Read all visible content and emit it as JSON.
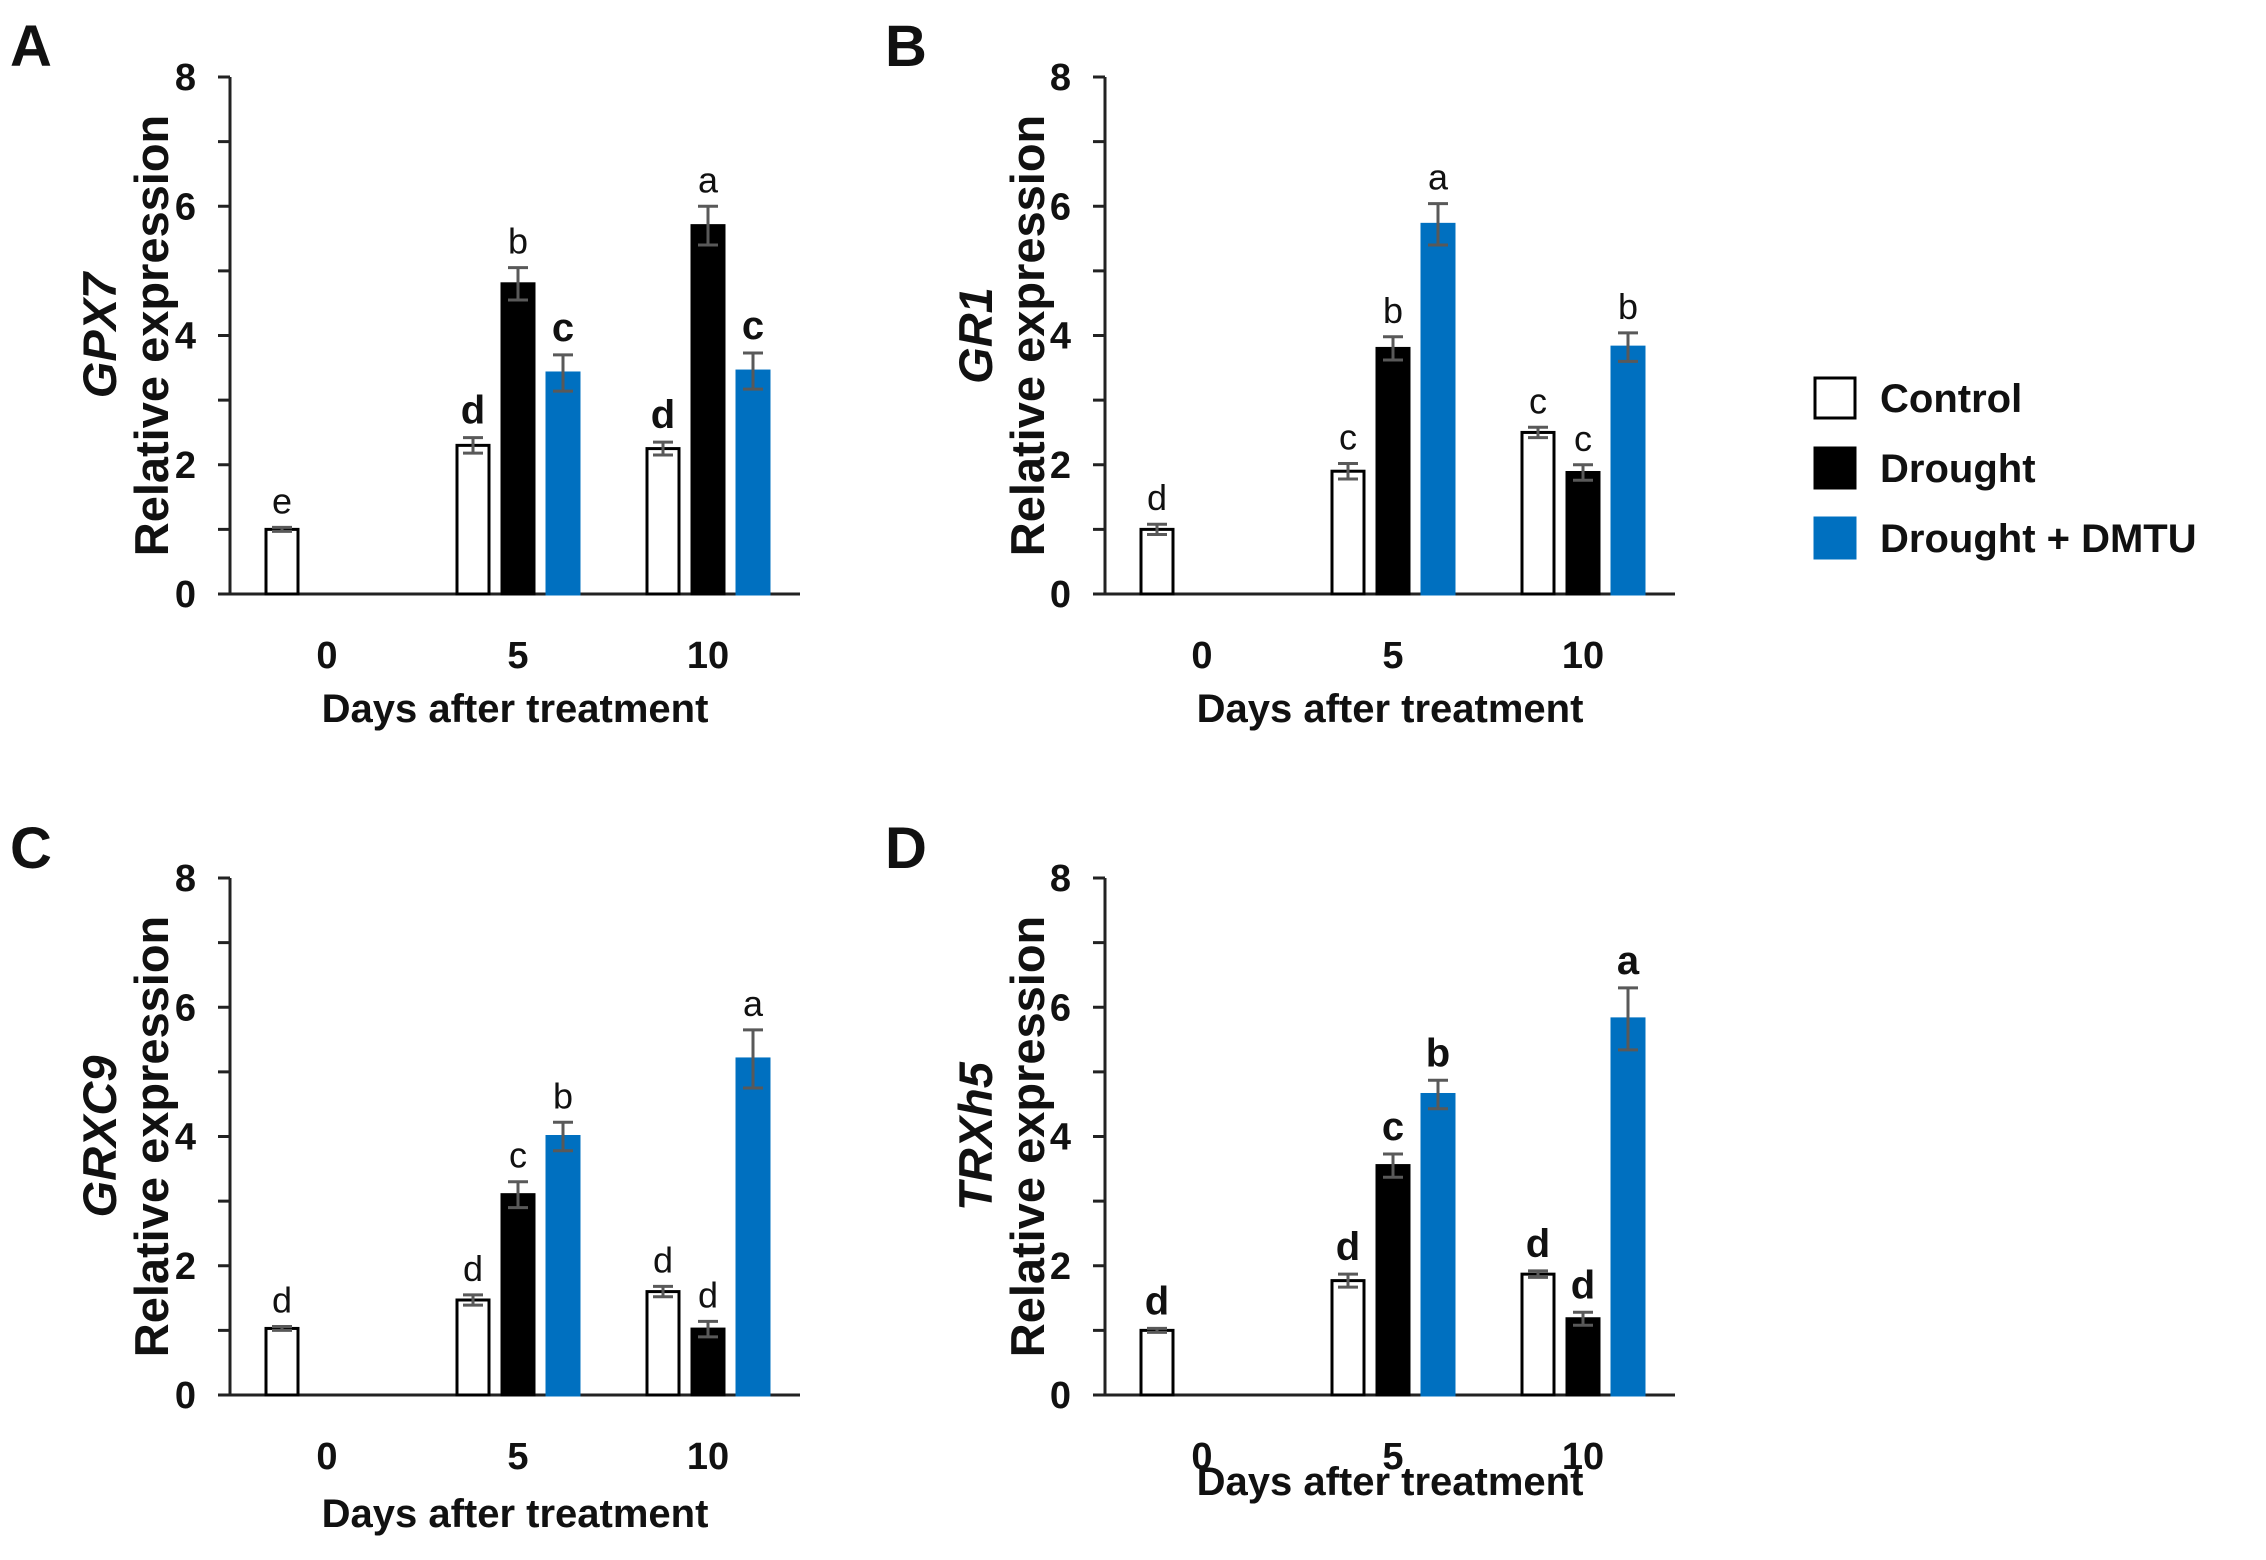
{
  "legend": {
    "entries": [
      {
        "label": "Control",
        "fill": "#ffffff"
      },
      {
        "label": "Drought",
        "fill": "#000000"
      },
      {
        "label": "Drought + DMTU",
        "fill": "#0070c0"
      }
    ]
  },
  "chart_data": [
    {
      "type": "bar",
      "panel_label": "A",
      "gene": "GPX7",
      "ylabel": "Relative expression",
      "xlabel": "Days after treatment",
      "categories": [
        "0",
        "5",
        "10"
      ],
      "ylim": [
        0,
        8
      ],
      "yticks": [
        "0",
        "2",
        "4",
        "6",
        "8"
      ],
      "bold_letters": false,
      "series": [
        {
          "name": "Control",
          "values": [
            1.0,
            2.3,
            2.25
          ],
          "errors": [
            0.03,
            0.12,
            0.1
          ],
          "letters": [
            "e",
            "d",
            "d"
          ],
          "letter_bold": [
            false,
            true,
            true
          ]
        },
        {
          "name": "Drought",
          "values": [
            null,
            4.8,
            5.7
          ],
          "errors": [
            null,
            0.25,
            0.3
          ],
          "letters": [
            "",
            "b",
            "a"
          ],
          "letter_bold": [
            false,
            false,
            false
          ]
        },
        {
          "name": "Drought + DMTU",
          "values": [
            null,
            3.42,
            3.45
          ],
          "errors": [
            null,
            0.28,
            0.28
          ],
          "letters": [
            "",
            "c",
            "c"
          ],
          "letter_bold": [
            false,
            true,
            true
          ]
        }
      ]
    },
    {
      "type": "bar",
      "panel_label": "B",
      "gene": "GR1",
      "ylabel": "Relative expression",
      "xlabel": "Days after treatment",
      "categories": [
        "0",
        "5",
        "10"
      ],
      "ylim": [
        0,
        8
      ],
      "yticks": [
        "0",
        "2",
        "4",
        "6",
        "8"
      ],
      "series": [
        {
          "name": "Control",
          "values": [
            1.0,
            1.9,
            2.5
          ],
          "errors": [
            0.08,
            0.12,
            0.08
          ],
          "letters": [
            "d",
            "c",
            "c"
          ],
          "letter_bold": [
            false,
            false,
            false
          ]
        },
        {
          "name": "Drought",
          "values": [
            null,
            3.8,
            1.88
          ],
          "errors": [
            null,
            0.18,
            0.12
          ],
          "letters": [
            "",
            "b",
            "c"
          ],
          "letter_bold": [
            false,
            false,
            false
          ]
        },
        {
          "name": "Drought + DMTU",
          "values": [
            null,
            5.72,
            3.82
          ],
          "errors": [
            null,
            0.32,
            0.22
          ],
          "letters": [
            "",
            "a",
            "b"
          ],
          "letter_bold": [
            false,
            false,
            false
          ]
        }
      ]
    },
    {
      "type": "bar",
      "panel_label": "C",
      "gene": "GRXC9",
      "ylabel": "Relative expression",
      "xlabel": "Days after treatment",
      "categories": [
        "0",
        "5",
        "10"
      ],
      "ylim": [
        0,
        8
      ],
      "yticks": [
        "0",
        "2",
        "4",
        "6",
        "8"
      ],
      "series": [
        {
          "name": "Control",
          "values": [
            1.03,
            1.47,
            1.6
          ],
          "errors": [
            0.03,
            0.08,
            0.08
          ],
          "letters": [
            "d",
            "d",
            "d"
          ],
          "letter_bold": [
            false,
            false,
            false
          ]
        },
        {
          "name": "Drought",
          "values": [
            null,
            3.1,
            1.02
          ],
          "errors": [
            null,
            0.2,
            0.12
          ],
          "letters": [
            "",
            "c",
            "d"
          ],
          "letter_bold": [
            false,
            false,
            false
          ]
        },
        {
          "name": "Drought + DMTU",
          "values": [
            null,
            4.0,
            5.2
          ],
          "errors": [
            null,
            0.22,
            0.45
          ],
          "letters": [
            "",
            "b",
            "a"
          ],
          "letter_bold": [
            false,
            false,
            false
          ]
        }
      ]
    },
    {
      "type": "bar",
      "panel_label": "D",
      "gene": "TRXh5",
      "ylabel": "Relative expression",
      "xlabel": "Days after treatment",
      "categories": [
        "0",
        "5",
        "10"
      ],
      "ylim": [
        0,
        8
      ],
      "yticks": [
        "0",
        "2",
        "4",
        "6",
        "8"
      ],
      "series": [
        {
          "name": "Control",
          "values": [
            1.0,
            1.77,
            1.87
          ],
          "errors": [
            0.03,
            0.1,
            0.05
          ],
          "letters": [
            "d",
            "d",
            "d"
          ],
          "letter_bold": [
            true,
            true,
            true
          ]
        },
        {
          "name": "Drought",
          "values": [
            null,
            3.55,
            1.18
          ],
          "errors": [
            null,
            0.18,
            0.1
          ],
          "letters": [
            "",
            "c",
            "d"
          ],
          "letter_bold": [
            false,
            true,
            true
          ]
        },
        {
          "name": "Drought + DMTU",
          "values": [
            null,
            4.65,
            5.82
          ],
          "errors": [
            null,
            0.22,
            0.48
          ],
          "letters": [
            "",
            "b",
            "a"
          ],
          "letter_bold": [
            false,
            true,
            true
          ]
        }
      ]
    }
  ]
}
